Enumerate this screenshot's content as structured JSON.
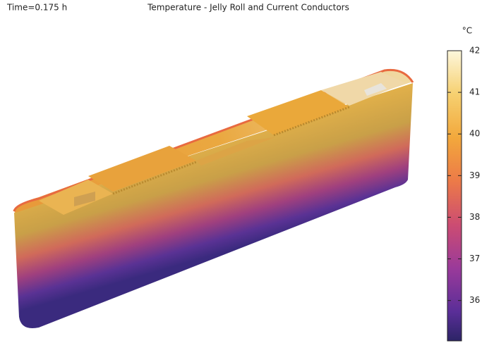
{
  "chart_data": {
    "type": "surface",
    "title": "Temperature - Jelly Roll and Current Conductors",
    "annotation": "Time=0.175 h",
    "colorbar_unit": "°C",
    "clim": [
      35.03,
      42
    ],
    "cticks": [
      36,
      37,
      38,
      39,
      40,
      41,
      42
    ]
  }
}
